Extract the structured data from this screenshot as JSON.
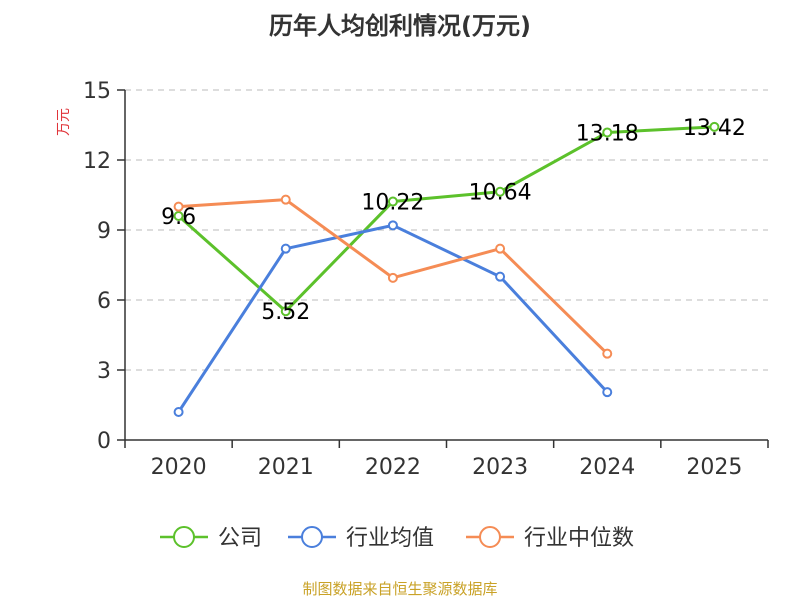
{
  "source_text": "制图数据来自恒生聚源数据库",
  "colors": {
    "title": "#333333",
    "ylabel": "#e0343a",
    "source": "#c9a227",
    "axis": "#333333",
    "grid": "#bbbbbb"
  },
  "chart_data": {
    "type": "line",
    "title": "历年人均创利情况(万元)",
    "xlabel": "",
    "ylabel": "万元",
    "categories": [
      "2020",
      "2021",
      "2022",
      "2023",
      "2024",
      "2025"
    ],
    "ylim": [
      0,
      15
    ],
    "yticks": [
      0,
      3,
      6,
      9,
      12,
      15
    ],
    "grid": true,
    "legend_position": "bottom",
    "series": [
      {
        "name": "公司",
        "color": "#5cc12b",
        "values": [
          9.6,
          5.52,
          10.22,
          10.64,
          13.18,
          13.42
        ],
        "labels": [
          "9.6",
          "5.52",
          "10.22",
          "10.64",
          "13.18",
          "13.42"
        ]
      },
      {
        "name": "行业均值",
        "color": "#4a7fdc",
        "values": [
          1.2,
          8.2,
          9.2,
          7.0,
          2.05,
          null
        ]
      },
      {
        "name": "行业中位数",
        "color": "#f58c55",
        "values": [
          10.0,
          10.3,
          6.95,
          8.2,
          3.7,
          null
        ]
      }
    ]
  }
}
